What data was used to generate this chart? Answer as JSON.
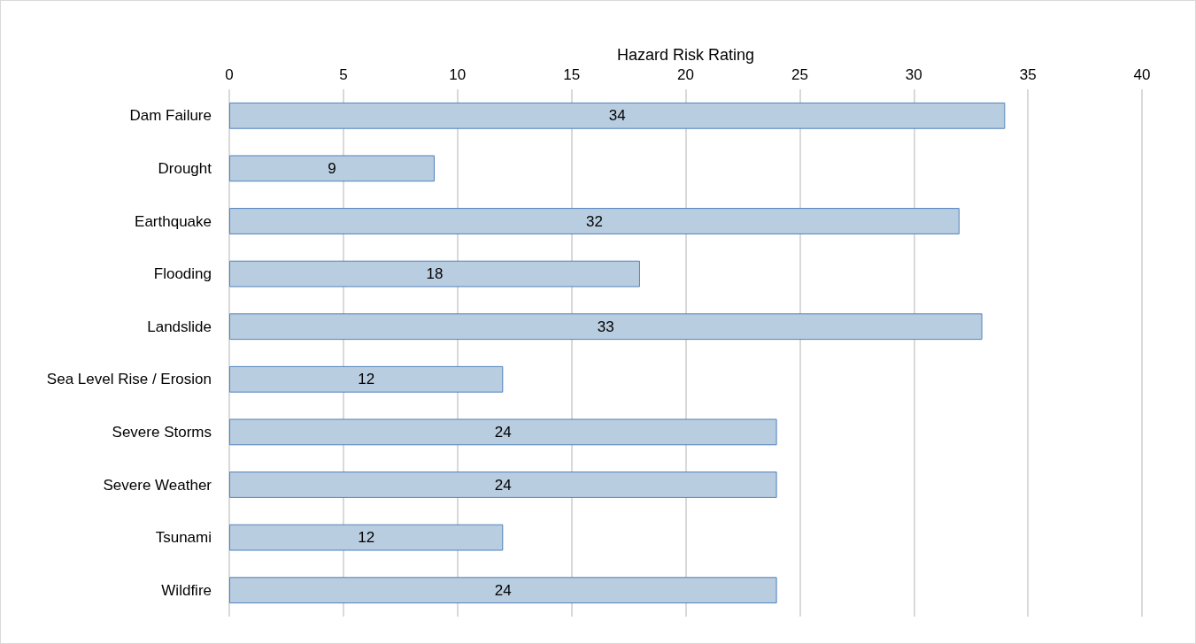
{
  "chart_data": {
    "type": "bar",
    "orientation": "horizontal",
    "xlabel": "Hazard Risk Rating",
    "categories": [
      "Dam Failure",
      "Drought",
      "Earthquake",
      "Flooding",
      "Landslide",
      "Sea Level Rise / Erosion",
      "Severe Storms",
      "Severe Weather",
      "Tsunami",
      "Wildfire"
    ],
    "values": [
      34,
      9,
      32,
      18,
      33,
      12,
      24,
      24,
      12,
      24
    ],
    "color": "#b9cde0",
    "xlim": [
      0,
      40
    ],
    "xticks": [
      0,
      5,
      10,
      15,
      20,
      25,
      30,
      35,
      40
    ],
    "grid": "x",
    "data_labels": true
  }
}
